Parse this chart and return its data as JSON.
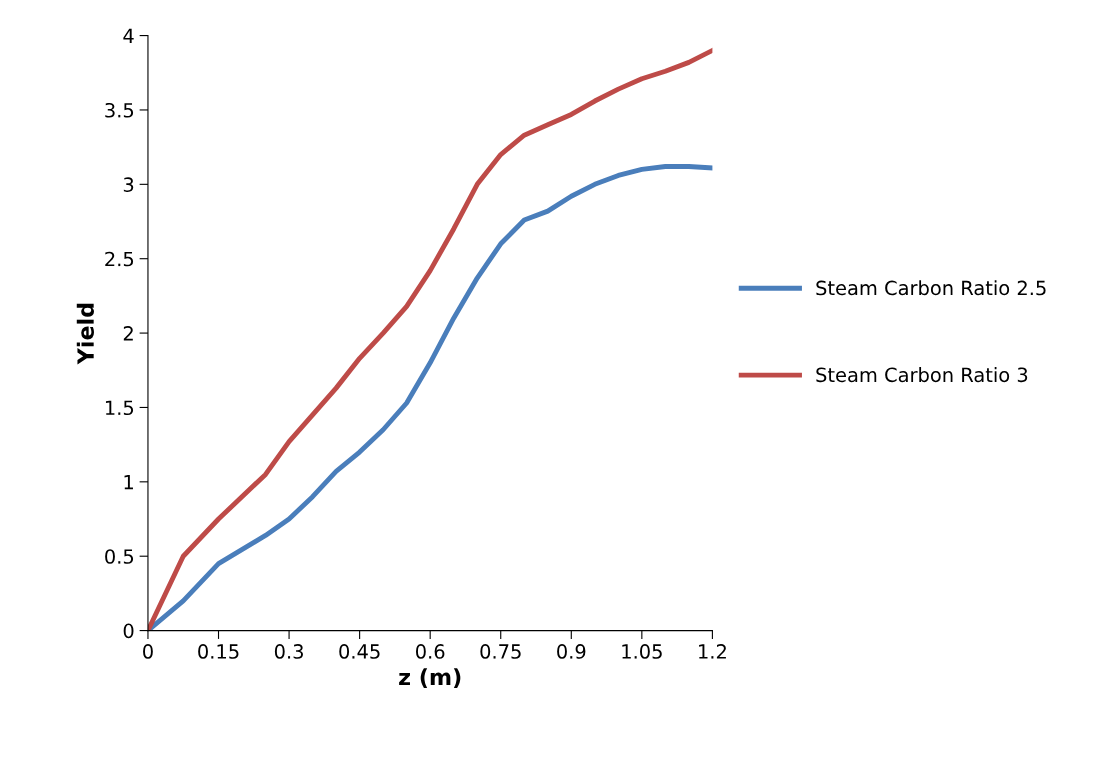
{
  "chart_data": {
    "type": "line",
    "xlabel": "z (m)",
    "ylabel": "Yield",
    "xlim": [
      0,
      1.2
    ],
    "xticks": [
      0,
      0.15,
      0.3,
      0.45,
      0.6,
      0.75,
      0.9,
      1.05,
      1.2
    ],
    "ylim": [
      0,
      4
    ],
    "yticks": [
      0,
      0.5,
      1,
      1.5,
      2,
      2.5,
      3,
      3.5,
      4
    ],
    "grid": false,
    "legend": "right",
    "marker": "none",
    "line_style": "solid",
    "x": [
      0,
      0.075,
      0.15,
      0.25,
      0.3,
      0.35,
      0.4,
      0.45,
      0.5,
      0.55,
      0.6,
      0.65,
      0.7,
      0.75,
      0.8,
      0.85,
      0.9,
      0.95,
      1.0,
      1.05,
      1.1,
      1.15,
      1.2
    ],
    "series": [
      {
        "name": "Steam Carbon Ratio 2.5",
        "color": "#4a7ebb",
        "values": [
          0,
          0.2,
          0.45,
          0.64,
          0.75,
          0.9,
          1.07,
          1.2,
          1.35,
          1.53,
          1.8,
          2.1,
          2.37,
          2.6,
          2.76,
          2.82,
          2.92,
          3.0,
          3.06,
          3.1,
          3.12,
          3.12,
          3.11
        ]
      },
      {
        "name": "Steam Carbon Ratio 3",
        "color": "#be4b48",
        "values": [
          0,
          0.5,
          0.75,
          1.05,
          1.27,
          1.45,
          1.63,
          1.83,
          2.0,
          2.18,
          2.42,
          2.7,
          3.0,
          3.2,
          3.33,
          3.4,
          3.47,
          3.56,
          3.64,
          3.71,
          3.76,
          3.82,
          3.9
        ]
      }
    ]
  }
}
